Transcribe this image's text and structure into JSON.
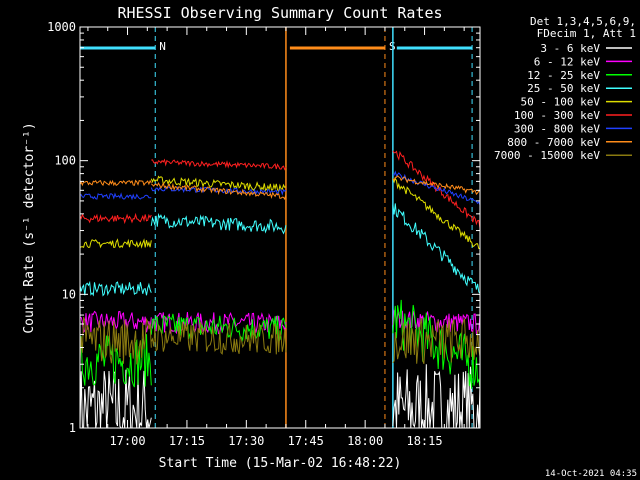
{
  "chart_data": {
    "type": "line",
    "title": "RHESSI Observing Summary Count Rates",
    "xlabel": "Start Time (15-Mar-02 16:48:22)",
    "ylabel": "Count Rate (s⁻¹ detector⁻¹)",
    "y_scale": "log",
    "ylim": [
      1,
      1000
    ],
    "x_range_minutes": [
      "16:48",
      "18:29"
    ],
    "x_ticks": [
      "17:00",
      "17:15",
      "17:30",
      "17:45",
      "18:00",
      "18:15"
    ],
    "y_ticks": [
      "1",
      "10",
      "100",
      "1000"
    ],
    "grid": false,
    "legend_position": "right",
    "legend_header": [
      "Det 1,3,4,5,6,9,",
      "FDecim 1, Att 1"
    ],
    "timestamp": "14-Oct-2021 04:35",
    "flags": [
      {
        "label": "N",
        "start": "16:48",
        "end": "17:07",
        "color": "#40e0ff"
      },
      {
        "label": "S",
        "start": "17:41",
        "end": "18:05",
        "color": "#ff8c1a"
      },
      {
        "label": "",
        "start": "18:08",
        "end": "18:27",
        "color": "#40e0ff"
      }
    ],
    "gaps": [
      [
        "17:40",
        "18:07"
      ]
    ],
    "series": [
      {
        "name": "3 - 6 keV",
        "color": "#ffffff",
        "segments": [
          {
            "t": [
              "16:48",
              "17:06"
            ],
            "start": 1.35,
            "end": 1.35,
            "noise": 0.35
          },
          {
            "t": [
              "18:07",
              "18:29"
            ],
            "start": 1.35,
            "end": 1.35,
            "noise": 0.35
          }
        ]
      },
      {
        "name": "6 - 12 keV",
        "color": "#ff00ff",
        "segments": [
          {
            "t": [
              "16:48",
              "17:06"
            ],
            "start": 6.2,
            "end": 6.2,
            "noise": 0.08
          },
          {
            "t": [
              "17:06",
              "17:40"
            ],
            "start": 6.2,
            "end": 6.0,
            "noise": 0.08
          },
          {
            "t": [
              "18:07",
              "18:29"
            ],
            "start": 6.5,
            "end": 6.0,
            "noise": 0.08
          }
        ]
      },
      {
        "name": "12 - 25 keV",
        "color": "#00ff00",
        "segments": [
          {
            "t": [
              "16:48",
              "17:06"
            ],
            "start": 3.2,
            "end": 3.2,
            "noise": 0.2
          },
          {
            "t": [
              "17:06",
              "17:40"
            ],
            "start": 5.8,
            "end": 5.5,
            "noise": 0.1
          },
          {
            "t": [
              "18:07",
              "18:29"
            ],
            "start": 6.5,
            "end": 2.8,
            "noise": 0.2
          }
        ]
      },
      {
        "name": "25 - 50 keV",
        "color": "#40ffff",
        "segments": [
          {
            "t": [
              "16:48",
              "17:06"
            ],
            "start": 11,
            "end": 11,
            "noise": 0.05
          },
          {
            "t": [
              "17:06",
              "17:40"
            ],
            "start": 36,
            "end": 32,
            "noise": 0.05
          },
          {
            "t": [
              "18:07",
              "18:29"
            ],
            "start": 45,
            "end": 10.5,
            "noise": 0.05
          }
        ]
      },
      {
        "name": "50 - 100 keV",
        "color": "#dddd00",
        "segments": [
          {
            "t": [
              "16:48",
              "17:06"
            ],
            "start": 24,
            "end": 24,
            "noise": 0.03
          },
          {
            "t": [
              "17:06",
              "17:40"
            ],
            "start": 72,
            "end": 62,
            "noise": 0.03
          },
          {
            "t": [
              "18:07",
              "18:29"
            ],
            "start": 72,
            "end": 22,
            "noise": 0.03
          }
        ]
      },
      {
        "name": "100 - 300 keV",
        "color": "#ff2020",
        "segments": [
          {
            "t": [
              "16:48",
              "17:06"
            ],
            "start": 37,
            "end": 37,
            "noise": 0.03
          },
          {
            "t": [
              "17:06",
              "17:40"
            ],
            "start": 98,
            "end": 90,
            "noise": 0.02
          },
          {
            "t": [
              "18:07",
              "18:29"
            ],
            "start": 120,
            "end": 33,
            "noise": 0.03
          }
        ]
      },
      {
        "name": "300 - 800 keV",
        "color": "#2040ff",
        "segments": [
          {
            "t": [
              "16:48",
              "17:06"
            ],
            "start": 54,
            "end": 54,
            "noise": 0.02
          },
          {
            "t": [
              "17:06",
              "17:40"
            ],
            "start": 62,
            "end": 58,
            "noise": 0.02
          },
          {
            "t": [
              "18:07",
              "18:29"
            ],
            "start": 80,
            "end": 48,
            "noise": 0.02
          }
        ]
      },
      {
        "name": "800 - 7000 keV",
        "color": "#ff8c1a",
        "segments": [
          {
            "t": [
              "16:48",
              "17:06"
            ],
            "start": 68,
            "end": 68,
            "noise": 0.02
          },
          {
            "t": [
              "17:06",
              "17:40"
            ],
            "start": 66,
            "end": 54,
            "noise": 0.02
          },
          {
            "t": [
              "18:07",
              "18:29"
            ],
            "start": 75,
            "end": 58,
            "noise": 0.02
          }
        ]
      },
      {
        "name": "7000 - 15000 keV",
        "color": "#8a7a10",
        "segments": [
          {
            "t": [
              "16:48",
              "17:06"
            ],
            "start": 4.5,
            "end": 4.5,
            "noise": 0.18
          },
          {
            "t": [
              "17:06",
              "17:40"
            ],
            "start": 4.8,
            "end": 4.6,
            "noise": 0.12
          },
          {
            "t": [
              "18:07",
              "18:29"
            ],
            "start": 4.5,
            "end": 4.5,
            "noise": 0.18
          }
        ]
      }
    ]
  }
}
